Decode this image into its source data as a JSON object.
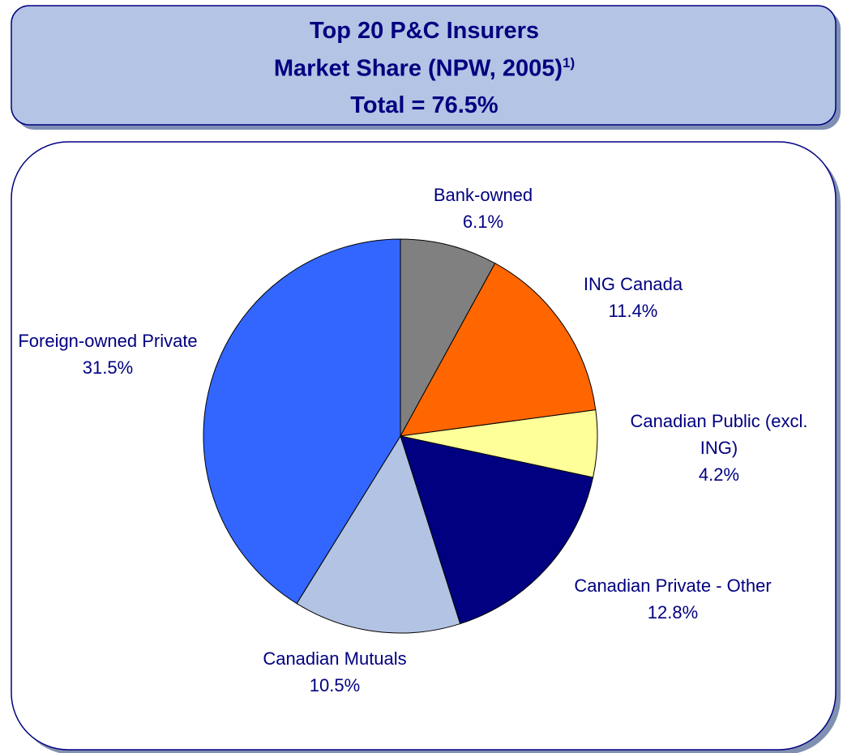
{
  "chart_data": {
    "type": "pie",
    "title": "Top 20 P&C Insurers",
    "subtitle": "Market Share (NPW, 2005)",
    "footnote_marker": "1)",
    "total_label": "Total = 76.5%",
    "categories": [
      "Bank-owned",
      "ING Canada",
      "Canadian Public (excl. ING)",
      "Canadian Private - Other",
      "Canadian Mutuals",
      "Foreign-owned Private"
    ],
    "values": [
      6.1,
      11.4,
      4.2,
      12.8,
      10.5,
      31.5
    ],
    "value_labels": [
      "6.1%",
      "11.4%",
      "4.2%",
      "12.8%",
      "10.5%",
      "31.5%"
    ],
    "colors": [
      "#808080",
      "#ff6600",
      "#ffff99",
      "#000080",
      "#b3c3e3",
      "#3366ff"
    ]
  }
}
